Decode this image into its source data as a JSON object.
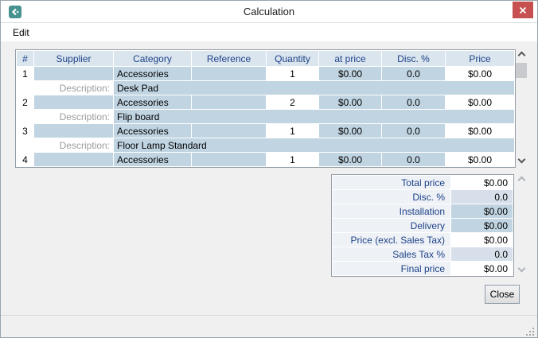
{
  "window": {
    "title": "Calculation"
  },
  "menu": {
    "items": [
      {
        "label": "Edit"
      }
    ]
  },
  "table": {
    "columns": [
      "#",
      "Supplier",
      "Category",
      "Reference",
      "Quantity",
      "at price",
      "Disc. %",
      "Price"
    ],
    "description_label": "Description:",
    "rows": [
      {
        "num": "1",
        "supplier": "",
        "category": "Accessories",
        "reference": "",
        "quantity": "1",
        "at_price": "$0.00",
        "disc": "0.0",
        "price": "$0.00",
        "description": "Desk Pad"
      },
      {
        "num": "2",
        "supplier": "",
        "category": "Accessories",
        "reference": "",
        "quantity": "2",
        "at_price": "$0.00",
        "disc": "0.0",
        "price": "$0.00",
        "description": "Flip board"
      },
      {
        "num": "3",
        "supplier": "",
        "category": "Accessories",
        "reference": "",
        "quantity": "1",
        "at_price": "$0.00",
        "disc": "0.0",
        "price": "$0.00",
        "description": "Floor Lamp Standard"
      },
      {
        "num": "4",
        "supplier": "",
        "category": "Accessories",
        "reference": "",
        "quantity": "1",
        "at_price": "$0.00",
        "disc": "0.0",
        "price": "$0.00",
        "description": null
      }
    ]
  },
  "summary": {
    "rows": [
      {
        "label": "Total price",
        "value": "$0.00",
        "style": "input"
      },
      {
        "label": "Disc. %",
        "value": "0.0",
        "style": "locked-light"
      },
      {
        "label": "Installation",
        "value": "$0.00",
        "style": "locked"
      },
      {
        "label": "Delivery",
        "value": "$0.00",
        "style": "locked"
      },
      {
        "label": "Price (excl. Sales Tax)",
        "value": "$0.00",
        "style": "input"
      },
      {
        "label": "Sales Tax %",
        "value": "0.0",
        "style": "locked-light"
      },
      {
        "label": "Final price",
        "value": "$0.00",
        "style": "input"
      }
    ]
  },
  "buttons": {
    "close": "Close"
  },
  "colors": {
    "accent_red": "#c75050",
    "icon_teal": "#47918f",
    "cell_blue": "#c0d4e2",
    "cell_blue_light": "#d7e0ea",
    "header_blue_bg": "#dbe5ee",
    "label_navy": "#1d4289"
  }
}
